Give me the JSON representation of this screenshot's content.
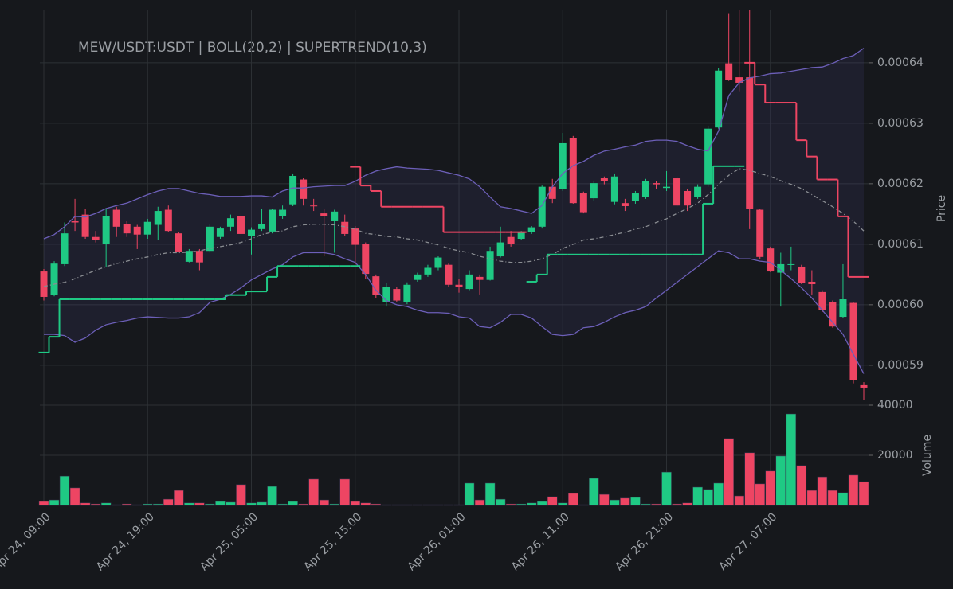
{
  "chart_data": [
    {
      "type": "candlestick",
      "title": "MEW/USDT:USDT | BOLL(20,2) | SUPERTREND(10,3)",
      "ylabel": "Price",
      "ylim": [
        0.0005834,
        0.0006488
      ],
      "yticks": [
        0.00059,
        {
          "value": 0.0006,
          "label": "0.00060"
        },
        0.00061,
        0.00062,
        0.00063,
        0.00064
      ],
      "grid": true,
      "up_color": "#1fc984",
      "down_color": "#ee4563",
      "open": [
        0.0006055,
        0.0006016,
        0.0006067,
        0.0006138,
        0.0006149,
        0.0006112,
        0.00061,
        0.0006157,
        0.0006133,
        0.0006129,
        0.0006116,
        0.0006132,
        0.0006157,
        0.0006118,
        0.0006071,
        0.0006089,
        0.0006089,
        0.0006112,
        0.0006129,
        0.0006147,
        0.0006113,
        0.0006125,
        0.0006121,
        0.0006146,
        0.0006166,
        0.0006207,
        0.0006164,
        0.0006151,
        0.0006138,
        0.0006137,
        0.0006126,
        0.00061,
        0.0006047,
        0.0006004,
        0.0006026,
        0.0006004,
        0.0006041,
        0.000605,
        0.0006061,
        0.0006066,
        0.0006033,
        0.0006026,
        0.0006046,
        0.0006041,
        0.000608,
        0.0006112,
        0.0006109,
        0.000612,
        0.0006129,
        0.0006195,
        0.0006191,
        0.0006276,
        0.0006184,
        0.0006176,
        0.0006209,
        0.000617,
        0.0006168,
        0.0006172,
        0.0006178,
        0.0006201,
        0.0006193,
        0.0006209,
        0.0006188,
        0.0006178,
        0.0006199,
        0.0006293,
        0.0006399,
        0.0006376,
        0.0006376,
        0.0006157,
        0.0006093,
        0.0006053,
        0.0006066,
        0.0006063,
        0.0006038,
        0.0006021,
        0.0006004,
        0.000598,
        0.0006003,
        0.0005867
      ],
      "high": [
        0.0006059,
        0.0006072,
        0.0006136,
        0.0006175,
        0.0006159,
        0.0006122,
        0.0006159,
        0.0006162,
        0.0006138,
        0.0006132,
        0.0006142,
        0.0006162,
        0.0006164,
        0.000612,
        0.0006092,
        0.0006092,
        0.0006133,
        0.0006129,
        0.0006149,
        0.0006151,
        0.0006128,
        0.0006159,
        0.0006159,
        0.0006164,
        0.0006217,
        0.0006209,
        0.0006175,
        0.0006159,
        0.0006157,
        0.0006149,
        0.000613,
        0.0006103,
        0.000605,
        0.0006036,
        0.000603,
        0.0006037,
        0.0006053,
        0.0006066,
        0.000608,
        0.0006068,
        0.0006043,
        0.0006057,
        0.000605,
        0.0006096,
        0.0006129,
        0.0006122,
        0.0006122,
        0.000613,
        0.0006197,
        0.0006208,
        0.0006284,
        0.0006279,
        0.0006187,
        0.0006205,
        0.0006212,
        0.0006217,
        0.0006175,
        0.0006188,
        0.0006208,
        0.0006204,
        0.0006221,
        0.0006212,
        0.0006191,
        0.0006199,
        0.0006296,
        0.0006391,
        0.0006482,
        0.0006488,
        0.0006488,
        0.0006159,
        0.0006096,
        0.0006086,
        0.0006096,
        0.0006066,
        0.0006057,
        0.0006024,
        0.0006007,
        0.0006067,
        0.0006005,
        0.0005872
      ],
      "low": [
        0.0006007,
        0.0006014,
        0.0006064,
        0.0006122,
        0.0006109,
        0.0006103,
        0.0006063,
        0.0006112,
        0.0006112,
        0.0006092,
        0.0006109,
        0.0006107,
        0.000612,
        0.0006087,
        0.000607,
        0.0006057,
        0.0006086,
        0.0006109,
        0.0006122,
        0.0006114,
        0.0006083,
        0.0006122,
        0.0006118,
        0.0006142,
        0.0006163,
        0.0006164,
        0.0006155,
        0.000608,
        0.0006086,
        0.0006113,
        0.0006066,
        0.0006043,
        0.0006011,
        0.0005997,
        0.0006004,
        0.0006001,
        0.0006038,
        0.0006046,
        0.0006057,
        0.000603,
        0.000602,
        0.0006024,
        0.0006017,
        0.000604,
        0.0006078,
        0.0006096,
        0.0006107,
        0.0006117,
        0.0006126,
        0.0006168,
        0.0006188,
        0.0006167,
        0.0006151,
        0.0006172,
        0.0006199,
        0.0006166,
        0.0006155,
        0.0006167,
        0.0006175,
        0.0006192,
        0.0006188,
        0.0006162,
        0.0006155,
        0.0006175,
        0.0006195,
        0.0006291,
        0.000637,
        0.0006353,
        0.0006125,
        0.0006076,
        0.0006054,
        0.0005997,
        0.0006057,
        0.0006034,
        0.0006017,
        0.0005988,
        0.0005962,
        0.0005978,
        0.000587,
        0.0005843
      ],
      "close": [
        0.0006013,
        0.0006068,
        0.0006118,
        0.0006136,
        0.0006112,
        0.0006107,
        0.0006146,
        0.0006129,
        0.0006118,
        0.0006116,
        0.0006137,
        0.0006155,
        0.0006122,
        0.0006088,
        0.0006089,
        0.000607,
        0.0006129,
        0.0006126,
        0.0006143,
        0.0006117,
        0.0006124,
        0.0006134,
        0.0006157,
        0.0006157,
        0.0006213,
        0.0006175,
        0.0006163,
        0.0006146,
        0.0006154,
        0.0006117,
        0.0006099,
        0.0006051,
        0.0006016,
        0.000603,
        0.0006007,
        0.0006033,
        0.000605,
        0.0006061,
        0.0006078,
        0.0006033,
        0.000603,
        0.000605,
        0.0006041,
        0.0006089,
        0.0006103,
        0.00061,
        0.000612,
        0.0006128,
        0.0006195,
        0.0006175,
        0.0006267,
        0.0006168,
        0.0006153,
        0.0006201,
        0.0006204,
        0.0006212,
        0.0006163,
        0.0006184,
        0.0006204,
        0.0006199,
        0.0006195,
        0.0006164,
        0.0006164,
        0.0006195,
        0.0006291,
        0.0006387,
        0.0006372,
        0.0006367,
        0.0006159,
        0.0006079,
        0.0006055,
        0.0006067,
        0.0006067,
        0.0006036,
        0.0006034,
        0.0005991,
        0.0005964,
        0.0006009,
        0.0005875,
        0.0005863
      ],
      "band_color": "#6c5fb8",
      "band_fill": "rgba(90,80,170,0.12)",
      "middle_color": "#8a8d92",
      "boll_upper": [
        0.0006109,
        0.0006116,
        0.0006129,
        0.0006146,
        0.0006145,
        0.0006151,
        0.0006159,
        0.0006164,
        0.0006168,
        0.0006175,
        0.0006182,
        0.0006188,
        0.0006192,
        0.0006192,
        0.0006188,
        0.0006184,
        0.0006182,
        0.0006179,
        0.0006179,
        0.0006179,
        0.000618,
        0.000618,
        0.0006178,
        0.0006188,
        0.0006193,
        0.0006193,
        0.0006195,
        0.0006196,
        0.0006197,
        0.0006197,
        0.0006204,
        0.0006214,
        0.0006221,
        0.0006225,
        0.0006228,
        0.0006226,
        0.0006225,
        0.0006224,
        0.0006222,
        0.0006218,
        0.0006214,
        0.0006208,
        0.0006195,
        0.0006178,
        0.0006162,
        0.0006159,
        0.0006155,
        0.0006151,
        0.0006164,
        0.0006195,
        0.0006217,
        0.000623,
        0.0006237,
        0.0006247,
        0.0006254,
        0.0006257,
        0.0006261,
        0.0006264,
        0.000627,
        0.0006272,
        0.0006272,
        0.000627,
        0.0006263,
        0.0006257,
        0.0006254,
        0.0006287,
        0.0006346,
        0.0006367,
        0.0006375,
        0.0006378,
        0.0006382,
        0.0006383,
        0.0006386,
        0.0006389,
        0.0006392,
        0.0006393,
        0.0006399,
        0.0006407,
        0.0006412,
        0.0006424
      ],
      "boll_middle": [
        0.000603,
        0.0006034,
        0.0006037,
        0.0006043,
        0.000605,
        0.0006057,
        0.0006063,
        0.0006068,
        0.0006072,
        0.0006076,
        0.0006079,
        0.0006083,
        0.0006086,
        0.0006086,
        0.0006087,
        0.0006089,
        0.0006093,
        0.0006096,
        0.0006099,
        0.0006103,
        0.0006109,
        0.0006116,
        0.000612,
        0.0006122,
        0.0006129,
        0.0006132,
        0.0006133,
        0.0006133,
        0.0006132,
        0.0006129,
        0.0006125,
        0.0006118,
        0.0006116,
        0.0006113,
        0.0006112,
        0.0006109,
        0.0006107,
        0.0006103,
        0.0006099,
        0.0006093,
        0.0006089,
        0.0006086,
        0.000608,
        0.0006076,
        0.0006072,
        0.000607,
        0.000607,
        0.0006072,
        0.0006076,
        0.0006083,
        0.0006093,
        0.00061,
        0.0006107,
        0.0006109,
        0.0006112,
        0.0006116,
        0.000612,
        0.0006125,
        0.0006129,
        0.0006136,
        0.0006142,
        0.0006151,
        0.0006159,
        0.0006168,
        0.0006182,
        0.0006199,
        0.0006214,
        0.0006225,
        0.0006222,
        0.0006217,
        0.0006212,
        0.0006205,
        0.0006199,
        0.0006192,
        0.0006182,
        0.0006172,
        0.0006162,
        0.0006151,
        0.0006138,
        0.0006122
      ],
      "boll_lower": [
        0.0005951,
        0.0005951,
        0.0005949,
        0.0005938,
        0.0005945,
        0.0005958,
        0.0005967,
        0.0005971,
        0.0005974,
        0.0005978,
        0.000598,
        0.0005979,
        0.0005978,
        0.0005978,
        0.000598,
        0.0005987,
        0.0006004,
        0.0006009,
        0.0006017,
        0.0006028,
        0.0006041,
        0.000605,
        0.0006059,
        0.0006066,
        0.0006079,
        0.0006086,
        0.0006086,
        0.0006086,
        0.0006083,
        0.0006076,
        0.000607,
        0.000605,
        0.0006024,
        0.0006007,
        0.0006,
        0.0005997,
        0.0005991,
        0.0005987,
        0.0005987,
        0.0005986,
        0.000598,
        0.0005978,
        0.0005964,
        0.0005962,
        0.0005971,
        0.0005984,
        0.0005984,
        0.0005978,
        0.0005964,
        0.0005951,
        0.0005949,
        0.0005951,
        0.0005962,
        0.0005964,
        0.0005971,
        0.000598,
        0.0005987,
        0.0005991,
        0.0005997,
        0.0006011,
        0.0006024,
        0.0006037,
        0.000605,
        0.0006063,
        0.0006076,
        0.0006089,
        0.0006086,
        0.0006076,
        0.0006076,
        0.0006072,
        0.000607,
        0.0006057,
        0.0006043,
        0.0006028,
        0.0006011,
        0.0005991,
        0.0005971,
        0.0005951,
        0.0005918,
        0.0005886
      ],
      "supertrend_up": [
        0.0005921,
        0.0005947,
        0.0006009,
        0.0006009,
        0.0006009,
        0.0006009,
        0.0006009,
        0.0006009,
        0.0006009,
        0.0006009,
        0.0006009,
        0.0006009,
        0.0006009,
        0.0006009,
        0.0006009,
        0.0006009,
        0.0006009,
        0.0006009,
        0.0006016,
        0.0006016,
        0.0006022,
        0.0006022,
        0.0006046,
        0.0006064,
        0.0006064,
        0.0006064,
        0.0006064,
        0.0006064,
        0.0006064,
        0.0006064,
        0.0006064,
        null,
        null,
        null,
        null,
        null,
        null,
        null,
        null,
        null,
        null,
        null,
        null,
        null,
        null,
        null,
        null,
        0.0006038,
        0.000605,
        0.0006083,
        0.0006083,
        0.0006083,
        0.0006083,
        0.0006083,
        0.0006083,
        0.0006083,
        0.0006083,
        0.0006083,
        0.0006083,
        0.0006083,
        0.0006083,
        0.0006083,
        0.0006083,
        0.0006083,
        0.0006167,
        0.0006229,
        0.0006229,
        0.0006229,
        null,
        null,
        null,
        null,
        null,
        null,
        null,
        null,
        null,
        null,
        null,
        null
      ],
      "supertrend_down": [
        null,
        null,
        null,
        null,
        null,
        null,
        null,
        null,
        null,
        null,
        null,
        null,
        null,
        null,
        null,
        null,
        null,
        null,
        null,
        null,
        null,
        null,
        null,
        null,
        null,
        null,
        null,
        null,
        null,
        null,
        0.0006228,
        0.0006197,
        0.0006188,
        0.0006162,
        0.0006162,
        0.0006162,
        0.0006162,
        0.0006162,
        0.0006162,
        0.000612,
        0.000612,
        0.000612,
        0.000612,
        0.000612,
        0.000612,
        0.000612,
        0.000612,
        null,
        null,
        null,
        null,
        null,
        null,
        null,
        null,
        null,
        null,
        null,
        null,
        null,
        null,
        null,
        null,
        null,
        null,
        null,
        null,
        null,
        0.00064,
        0.0006364,
        0.0006334,
        0.0006334,
        0.0006334,
        0.0006272,
        0.0006245,
        0.0006207,
        0.0006207,
        0.0006146,
        0.0006046,
        0.0006046
      ]
    },
    {
      "type": "bar",
      "ylabel": "Volume",
      "ylim": [
        0,
        40000
      ],
      "yticks": [
        20000,
        40000
      ],
      "grid": true,
      "categories": [
        "Apr 24, 09:00",
        null,
        null,
        null,
        null,
        null,
        null,
        null,
        null,
        null,
        "Apr 24, 19:00",
        null,
        null,
        null,
        null,
        null,
        null,
        null,
        null,
        null,
        "Apr 25, 05:00",
        null,
        null,
        null,
        null,
        null,
        null,
        null,
        null,
        null,
        "Apr 25, 15:00",
        null,
        null,
        null,
        null,
        null,
        null,
        null,
        null,
        null,
        "Apr 26, 01:00",
        null,
        null,
        null,
        null,
        null,
        null,
        null,
        null,
        null,
        "Apr 26, 11:00",
        null,
        null,
        null,
        null,
        null,
        null,
        null,
        null,
        null,
        "Apr 26, 21:00",
        null,
        null,
        null,
        null,
        null,
        null,
        null,
        null,
        null,
        "Apr 27, 07:00",
        null,
        null,
        null,
        null,
        null,
        null,
        null,
        null,
        null
      ],
      "values": [
        1600,
        2200,
        11700,
        7000,
        1000,
        600,
        1000,
        300,
        600,
        300,
        600,
        600,
        2500,
        6000,
        1000,
        1000,
        600,
        1600,
        1300,
        8300,
        1000,
        1300,
        7600,
        600,
        1600,
        600,
        10500,
        2200,
        600,
        10500,
        1600,
        1000,
        600,
        300,
        300,
        300,
        300,
        300,
        300,
        300,
        300,
        8900,
        2200,
        8900,
        2500,
        600,
        600,
        1000,
        1600,
        3500,
        1000,
        4800,
        300,
        10800,
        4400,
        2200,
        2900,
        3200,
        600,
        600,
        13300,
        600,
        1000,
        7300,
        6400,
        8900,
        26700,
        3800,
        21000,
        8600,
        13700,
        19700,
        36500,
        15900,
        6000,
        11400,
        6000,
        5100,
        12100,
        9500
      ]
    }
  ]
}
